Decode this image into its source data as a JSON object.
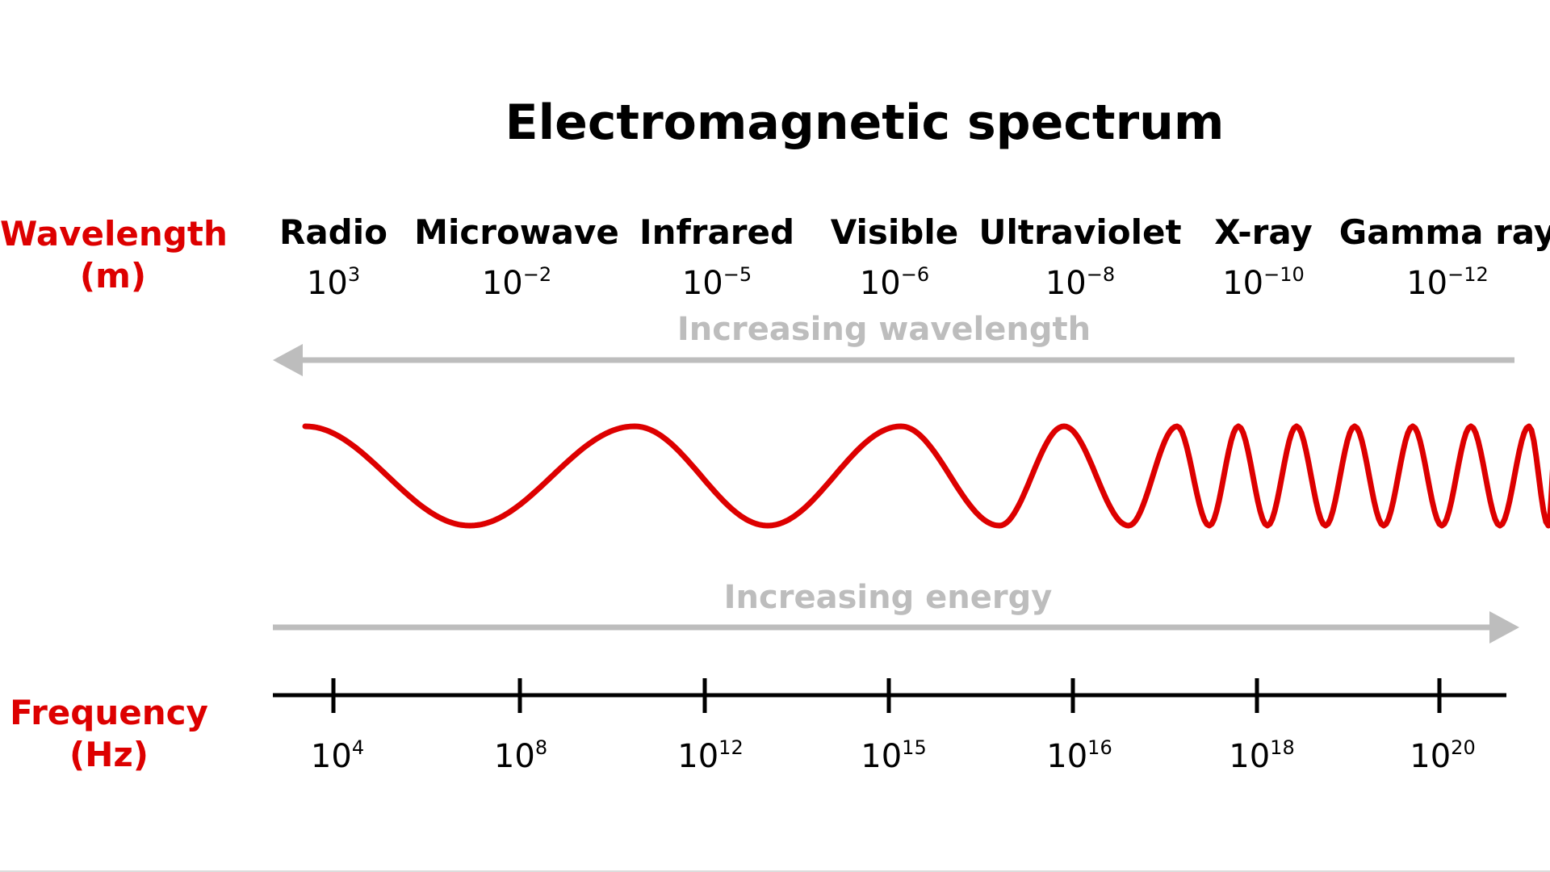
{
  "title": "Electromagnetic spectrum",
  "wavelength_label": {
    "line1": "Wavelength",
    "line2": "(m)"
  },
  "frequency_label": {
    "line1": "Frequency",
    "line2": "(Hz)"
  },
  "bands": [
    {
      "name": "Radio",
      "wl_base": "10",
      "wl_exp": "3"
    },
    {
      "name": "Microwave",
      "wl_base": "10",
      "wl_exp": "−2"
    },
    {
      "name": "Infrared",
      "wl_base": "10",
      "wl_exp": "−5"
    },
    {
      "name": "Visible",
      "wl_base": "10",
      "wl_exp": "−6"
    },
    {
      "name": "Ultraviolet",
      "wl_base": "10",
      "wl_exp": "−8"
    },
    {
      "name": "X-ray",
      "wl_base": "10",
      "wl_exp": "−10"
    },
    {
      "name": "Gamma ray",
      "wl_base": "10",
      "wl_exp": "−12"
    }
  ],
  "wavelength_arrow": {
    "label": "Increasing wavelength",
    "direction": "left"
  },
  "energy_arrow": {
    "label": "Increasing energy",
    "direction": "right"
  },
  "frequency_ticks": [
    {
      "base": "10",
      "exp": "4"
    },
    {
      "base": "10",
      "exp": "8"
    },
    {
      "base": "10",
      "exp": "12"
    },
    {
      "base": "10",
      "exp": "15"
    },
    {
      "base": "10",
      "exp": "16"
    },
    {
      "base": "10",
      "exp": "18"
    },
    {
      "base": "10",
      "exp": "20"
    }
  ],
  "colors": {
    "accent": "#dd0000",
    "arrow": "#bdbdbd",
    "arrow_text": "#bdbdbd",
    "text": "#000000",
    "axis": "#000000"
  }
}
